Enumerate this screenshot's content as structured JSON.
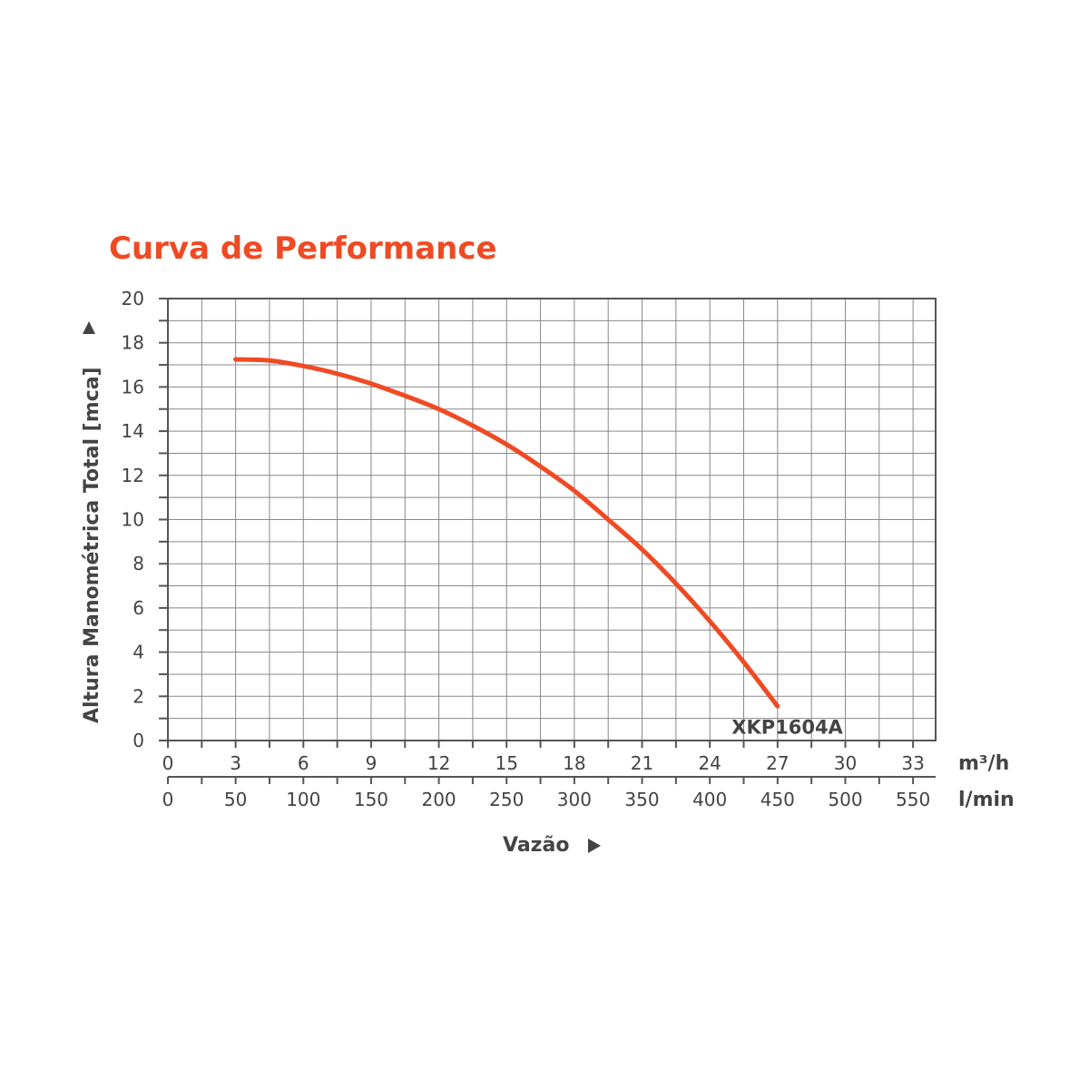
{
  "chart_data": {
    "type": "line",
    "title": "Curva de Performance",
    "ylabel": "Altura Manométrica Total [mca]",
    "xlabel": "Vazão",
    "x_unit_primary": "m³/h",
    "x_unit_secondary": "l/min",
    "xlim": [
      0,
      34
    ],
    "ylim": [
      0,
      20
    ],
    "x_ticks": [
      0,
      3,
      6,
      9,
      12,
      15,
      18,
      21,
      24,
      27,
      30,
      33
    ],
    "x_ticks_secondary": [
      0,
      50,
      100,
      150,
      200,
      250,
      300,
      350,
      400,
      450,
      500,
      550
    ],
    "y_ticks": [
      0,
      2,
      4,
      6,
      8,
      10,
      12,
      14,
      16,
      18,
      20
    ],
    "grid": true,
    "series": [
      {
        "name": "XKP1604A",
        "color": "#ef4a23",
        "x": [
          3,
          4.5,
          6,
          7.5,
          9,
          10.5,
          12,
          13.5,
          15,
          16.5,
          18,
          19.5,
          21,
          22.5,
          24,
          25.5,
          27
        ],
        "y": [
          17.25,
          17.2,
          16.95,
          16.6,
          16.15,
          15.6,
          15.0,
          14.25,
          13.4,
          12.4,
          11.3,
          10.0,
          8.65,
          7.1,
          5.4,
          3.55,
          1.55
        ]
      }
    ],
    "colors": {
      "title": "#ef4a23",
      "text": "#444444",
      "grid": "#888888",
      "axis": "#555555"
    }
  }
}
